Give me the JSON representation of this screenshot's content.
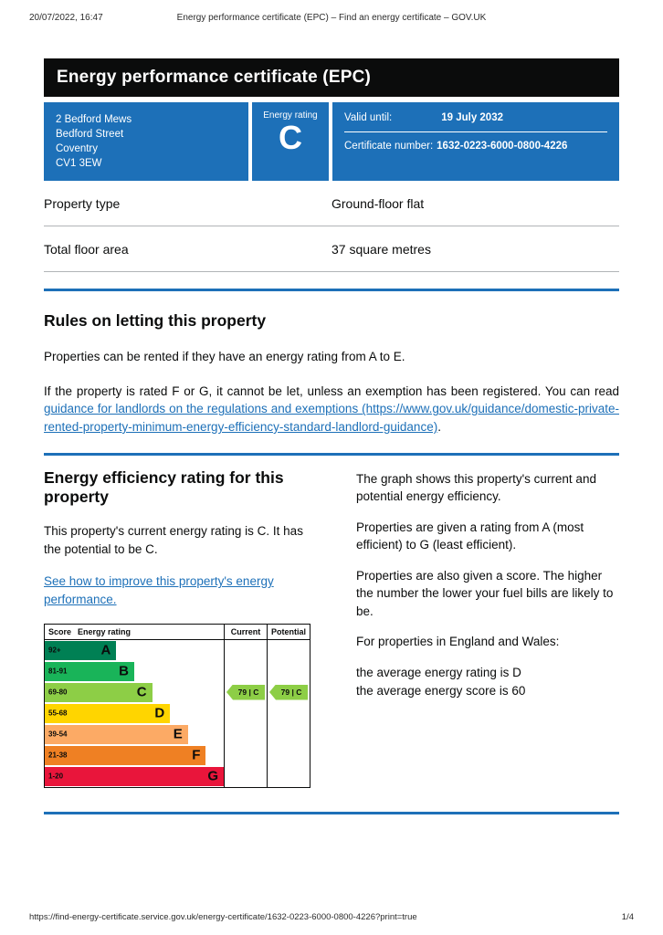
{
  "print_header": {
    "datetime": "20/07/2022, 16:47",
    "title": "Energy performance certificate (EPC) – Find an energy certificate – GOV.UK"
  },
  "banner": {
    "title": "Energy performance certificate (EPC)"
  },
  "summary": {
    "address_lines": [
      "2 Bedford Mews",
      "Bedford Street",
      "Coventry",
      "CV1 3EW"
    ],
    "energy_rating_label": "Energy rating",
    "energy_rating": "C",
    "valid_until_label": "Valid until:",
    "valid_until": "19 July 2032",
    "certificate_number_label": "Certificate number:",
    "certificate_number": "1632-0223-6000-0800-4226"
  },
  "property_table": {
    "rows": [
      {
        "label": "Property type",
        "value": "Ground-floor flat"
      },
      {
        "label": "Total floor area",
        "value": "37 square metres"
      }
    ]
  },
  "rules_section": {
    "heading": "Rules on letting this property",
    "para1": "Properties can be rented if they have an energy rating from A to E.",
    "para2_before": "If the property is rated F or G, it cannot be let, unless an exemption has been registered. You can read ",
    "link_text": "guidance for landlords on the regulations and exemptions (https://www.gov.uk/guidance/domestic-private-rented-property-minimum-energy-efficiency-standard-landlord-guidance)",
    "para2_after": "."
  },
  "rating_section": {
    "heading": "Energy efficiency rating for this property",
    "para1": "This property's current energy rating is C. It has the potential to be C.",
    "link_text": "See how to improve this property's energy performance."
  },
  "explanation": {
    "paras": [
      "The graph shows this property's current and potential energy efficiency.",
      "Properties are given a rating from A (most efficient) to G (least efficient).",
      "Properties are also given a score. The higher the number the lower your fuel bills are likely to be.",
      "For properties in England and Wales:"
    ],
    "avg_rating_line": "the average energy rating is D",
    "avg_score_line": "the average energy score is 60"
  },
  "chart_data": {
    "type": "bar",
    "title": "Energy efficiency rating bands",
    "headers": {
      "score": "Score",
      "rating": "Energy rating",
      "current": "Current",
      "potential": "Potential"
    },
    "bands": [
      {
        "score": "92+",
        "letter": "A",
        "color": "#008054",
        "width_pct": 40
      },
      {
        "score": "81-91",
        "letter": "B",
        "color": "#19b459",
        "width_pct": 50
      },
      {
        "score": "69-80",
        "letter": "C",
        "color": "#8dce46",
        "width_pct": 60
      },
      {
        "score": "55-68",
        "letter": "D",
        "color": "#ffd500",
        "width_pct": 70
      },
      {
        "score": "39-54",
        "letter": "E",
        "color": "#fcaa65",
        "width_pct": 80
      },
      {
        "score": "21-38",
        "letter": "F",
        "color": "#ef8023",
        "width_pct": 90
      },
      {
        "score": "1-20",
        "letter": "G",
        "color": "#e9153b",
        "width_pct": 100
      }
    ],
    "current": {
      "score": 79,
      "letter": "C",
      "band_index": 2,
      "label": "79 | C",
      "color": "#8dce46"
    },
    "potential": {
      "score": 79,
      "letter": "C",
      "band_index": 2,
      "label": "79 | C",
      "color": "#8dce46"
    }
  },
  "colors": {
    "brand_blue": "#1d70b8",
    "banner_black": "#0b0c0c",
    "divider_blue": "#1d70b8",
    "row_border": "#b1b4b6"
  },
  "print_footer": {
    "url": "https://find-energy-certificate.service.gov.uk/energy-certificate/1632-0223-6000-0800-4226?print=true",
    "page": "1/4"
  }
}
